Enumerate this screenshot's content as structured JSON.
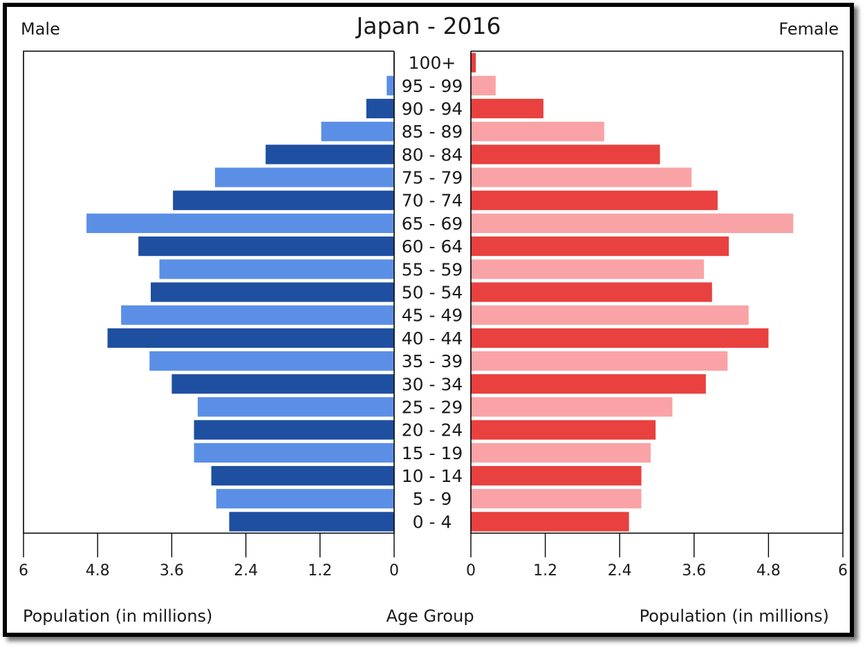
{
  "chart_data": {
    "type": "bar",
    "title": "Japan - 2016",
    "left_label": "Male",
    "right_label": "Female",
    "xlabel_left": "Population (in millions)",
    "xlabel_center": "Age Group",
    "xlabel_right": "Population (in millions)",
    "xlim": [
      0,
      6
    ],
    "x_ticks_left": [
      "6",
      "4.8",
      "3.6",
      "2.4",
      "1.2",
      "0"
    ],
    "x_ticks_right": [
      "0",
      "1.2",
      "2.4",
      "3.6",
      "4.8",
      "6"
    ],
    "categories": [
      "100+",
      "95 - 99",
      "90 - 94",
      "85 - 89",
      "80 - 84",
      "75 - 79",
      "70 - 74",
      "65 - 69",
      "60 - 64",
      "55 - 59",
      "50 - 54",
      "45 - 49",
      "40 - 44",
      "35 - 39",
      "30 - 34",
      "25 - 29",
      "20 - 24",
      "15 - 19",
      "10 - 14",
      "5 - 9",
      "0 - 4"
    ],
    "series": [
      {
        "name": "Male",
        "values": [
          0.01,
          0.12,
          0.45,
          1.18,
          2.08,
          2.9,
          3.58,
          4.98,
          4.14,
          3.8,
          3.94,
          4.42,
          4.64,
          3.96,
          3.6,
          3.18,
          3.24,
          3.24,
          2.96,
          2.88,
          2.67
        ],
        "colors": [
          "#1f4fa0",
          "#5b8fe6"
        ]
      },
      {
        "name": "Female",
        "values": [
          0.08,
          0.4,
          1.17,
          2.15,
          3.05,
          3.56,
          3.98,
          5.2,
          4.16,
          3.76,
          3.89,
          4.48,
          4.8,
          4.14,
          3.79,
          3.25,
          2.98,
          2.9,
          2.75,
          2.75,
          2.55
        ],
        "colors": [
          "#e8413f",
          "#f9a3a6"
        ]
      }
    ],
    "grid": false
  }
}
